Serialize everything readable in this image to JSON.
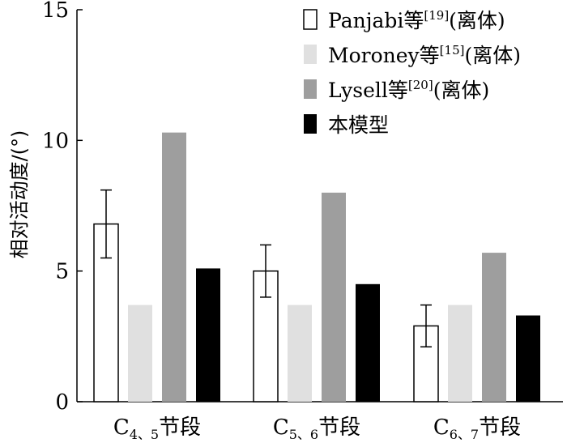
{
  "chart_data": {
    "type": "bar",
    "ylabel": "相对活动度/(°)",
    "xlabel": "",
    "ylim": [
      0,
      15
    ],
    "yticks": [
      0,
      5,
      10,
      15
    ],
    "categories": [
      {
        "prefix": "C",
        "sub": "4、5",
        "suffix": "节段"
      },
      {
        "prefix": "C",
        "sub": "5、6",
        "suffix": "节段"
      },
      {
        "prefix": "C",
        "sub": "6、7",
        "suffix": "节段"
      }
    ],
    "series": [
      {
        "name": "Panjabi等",
        "ref": "[19]",
        "note": "(离体)",
        "color": "#ffffff",
        "stroke": "#000000",
        "values": [
          6.8,
          5.0,
          2.9
        ],
        "errors": [
          1.3,
          1.0,
          0.8
        ]
      },
      {
        "name": "Moroney等",
        "ref": "[15]",
        "note": "(离体)",
        "color": "#e0e0e0",
        "stroke": "none",
        "values": [
          3.7,
          3.7,
          3.7
        ],
        "errors": [
          null,
          null,
          null
        ]
      },
      {
        "name": "Lysell等",
        "ref": "[20]",
        "note": "(离体)",
        "color": "#9e9e9e",
        "stroke": "none",
        "values": [
          10.3,
          8.0,
          5.7
        ],
        "errors": [
          null,
          null,
          null
        ]
      },
      {
        "name": "本模型",
        "ref": "",
        "note": "",
        "color": "#000000",
        "stroke": "none",
        "values": [
          5.1,
          4.5,
          3.3
        ],
        "errors": [
          null,
          null,
          null
        ]
      }
    ],
    "legend_position": "top-right",
    "grid": false
  }
}
